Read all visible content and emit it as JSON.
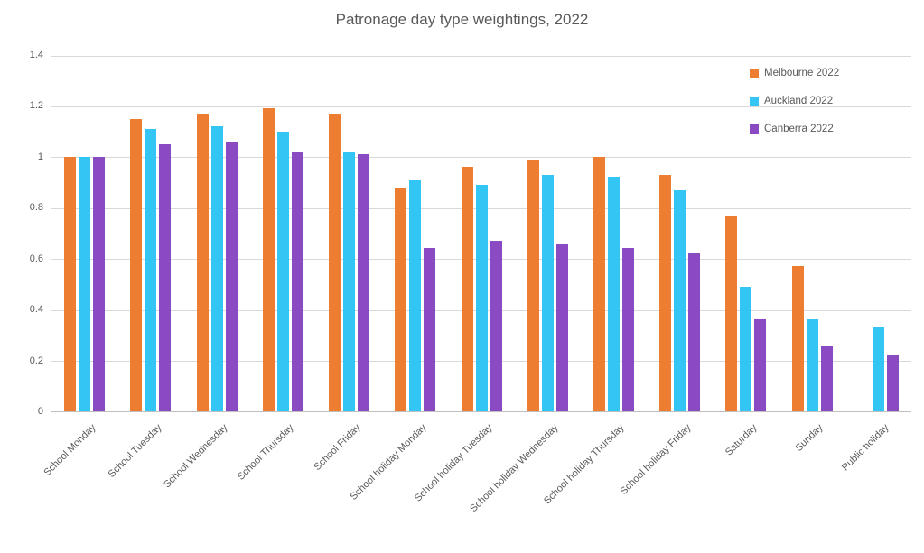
{
  "chart_data": {
    "type": "bar",
    "title": "Patronage day type weightings, 2022",
    "categories": [
      "School Monday",
      "School Tuesday",
      "School Wednesday",
      "School Thursday",
      "School Friday",
      "School holiday Monday",
      "School holiday Tuesday",
      "School holiday Wednesday",
      "School holiday Thursday",
      "School holiday Friday",
      "Saturday",
      "Sunday",
      "Public holiday"
    ],
    "series": [
      {
        "name": "Melbourne 2022",
        "color": "#ED7D31",
        "values": [
          1.0,
          1.15,
          1.17,
          1.19,
          1.17,
          0.88,
          0.96,
          0.99,
          1.0,
          0.93,
          0.77,
          0.57,
          null
        ]
      },
      {
        "name": "Auckland 2022",
        "color": "#33C6F4",
        "values": [
          1.0,
          1.11,
          1.12,
          1.1,
          1.02,
          0.91,
          0.89,
          0.93,
          0.92,
          0.87,
          0.49,
          0.36,
          0.33
        ]
      },
      {
        "name": "Canberra 2022",
        "color": "#8A4BC2",
        "values": [
          1.0,
          1.05,
          1.06,
          1.02,
          1.01,
          0.64,
          0.67,
          0.66,
          0.64,
          0.62,
          0.36,
          0.26,
          0.22
        ]
      }
    ],
    "ylim": [
      0,
      1.4
    ],
    "yticks": [
      0,
      0.2,
      0.4,
      0.6,
      0.8,
      1,
      1.2,
      1.4
    ],
    "ytick_labels": [
      "0",
      "0.2",
      "0.4",
      "0.6",
      "0.8",
      "1",
      "1.2",
      "1.4"
    ],
    "grid": true,
    "legend_position": "top-right",
    "text_color": "#595959",
    "gridline_color": "#D9D9D9",
    "axis_color": "#BFBFBF"
  }
}
